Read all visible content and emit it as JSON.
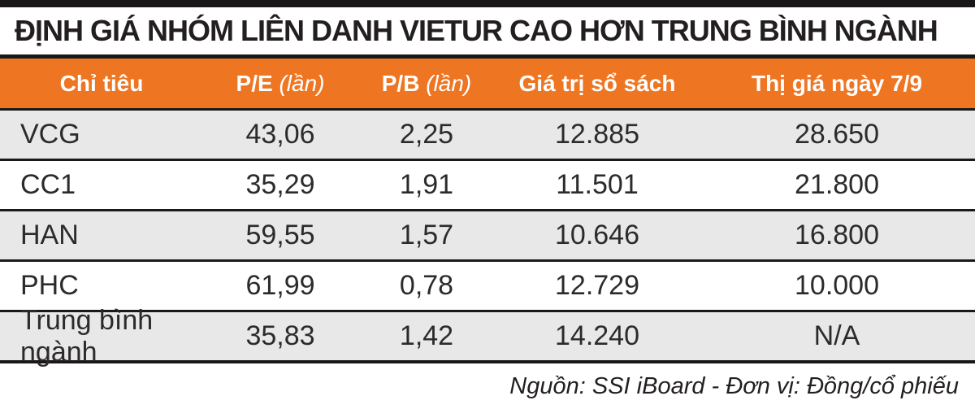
{
  "title": "ĐỊNH GIÁ NHÓM LIÊN DANH VIETUR CAO HƠN TRUNG BÌNH NGÀNH",
  "table": {
    "columns": [
      {
        "name": "Chỉ tiêu",
        "unit": ""
      },
      {
        "name": "P/E",
        "unit": " (lần)"
      },
      {
        "name": "P/B",
        "unit": " (lần)"
      },
      {
        "name": "Giá trị sổ sách",
        "unit": ""
      },
      {
        "name": "Thị giá ngày 7/9",
        "unit": ""
      }
    ],
    "rows": [
      {
        "cells": [
          "VCG",
          "43,06",
          "2,25",
          "12.885",
          "28.650"
        ]
      },
      {
        "cells": [
          "CC1",
          "35,29",
          "1,91",
          "11.501",
          "21.800"
        ]
      },
      {
        "cells": [
          "HAN",
          "59,55",
          "1,57",
          "10.646",
          "16.800"
        ]
      },
      {
        "cells": [
          "PHC",
          "61,99",
          "0,78",
          "12.729",
          "10.000"
        ]
      },
      {
        "cells": [
          "Trung bình ngành",
          "35,83",
          "1,42",
          "14.240",
          "N/A"
        ]
      }
    ]
  },
  "footer": {
    "source": "Nguồn: SSI iBoard - Đơn vị: Đồng/cổ phiếu"
  },
  "colors": {
    "accent_orange": "#EE7623",
    "row_alt_gray": "#E8E8E8",
    "line_black": "#1A1718",
    "text_dark": "#231F20"
  },
  "chart_data": {
    "type": "table",
    "title": "ĐỊNH GIÁ NHÓM LIÊN DANH VIETUR CAO HƠN TRUNG BÌNH NGÀNH",
    "columns": [
      "Chỉ tiêu",
      "P/E (lần)",
      "P/B (lần)",
      "Giá trị sổ sách",
      "Thị giá ngày 7/9"
    ],
    "rows": [
      [
        "VCG",
        "43,06",
        "2,25",
        "12.885",
        "28.650"
      ],
      [
        "CC1",
        "35,29",
        "1,91",
        "11.501",
        "21.800"
      ],
      [
        "HAN",
        "59,55",
        "1,57",
        "10.646",
        "16.800"
      ],
      [
        "PHC",
        "61,99",
        "0,78",
        "12.729",
        "10.000"
      ],
      [
        "Trung bình ngành",
        "35,83",
        "1,42",
        "14.240",
        "N/A"
      ]
    ],
    "note": "Nguồn: SSI iBoard - Đơn vị: Đồng/cổ phiếu"
  }
}
